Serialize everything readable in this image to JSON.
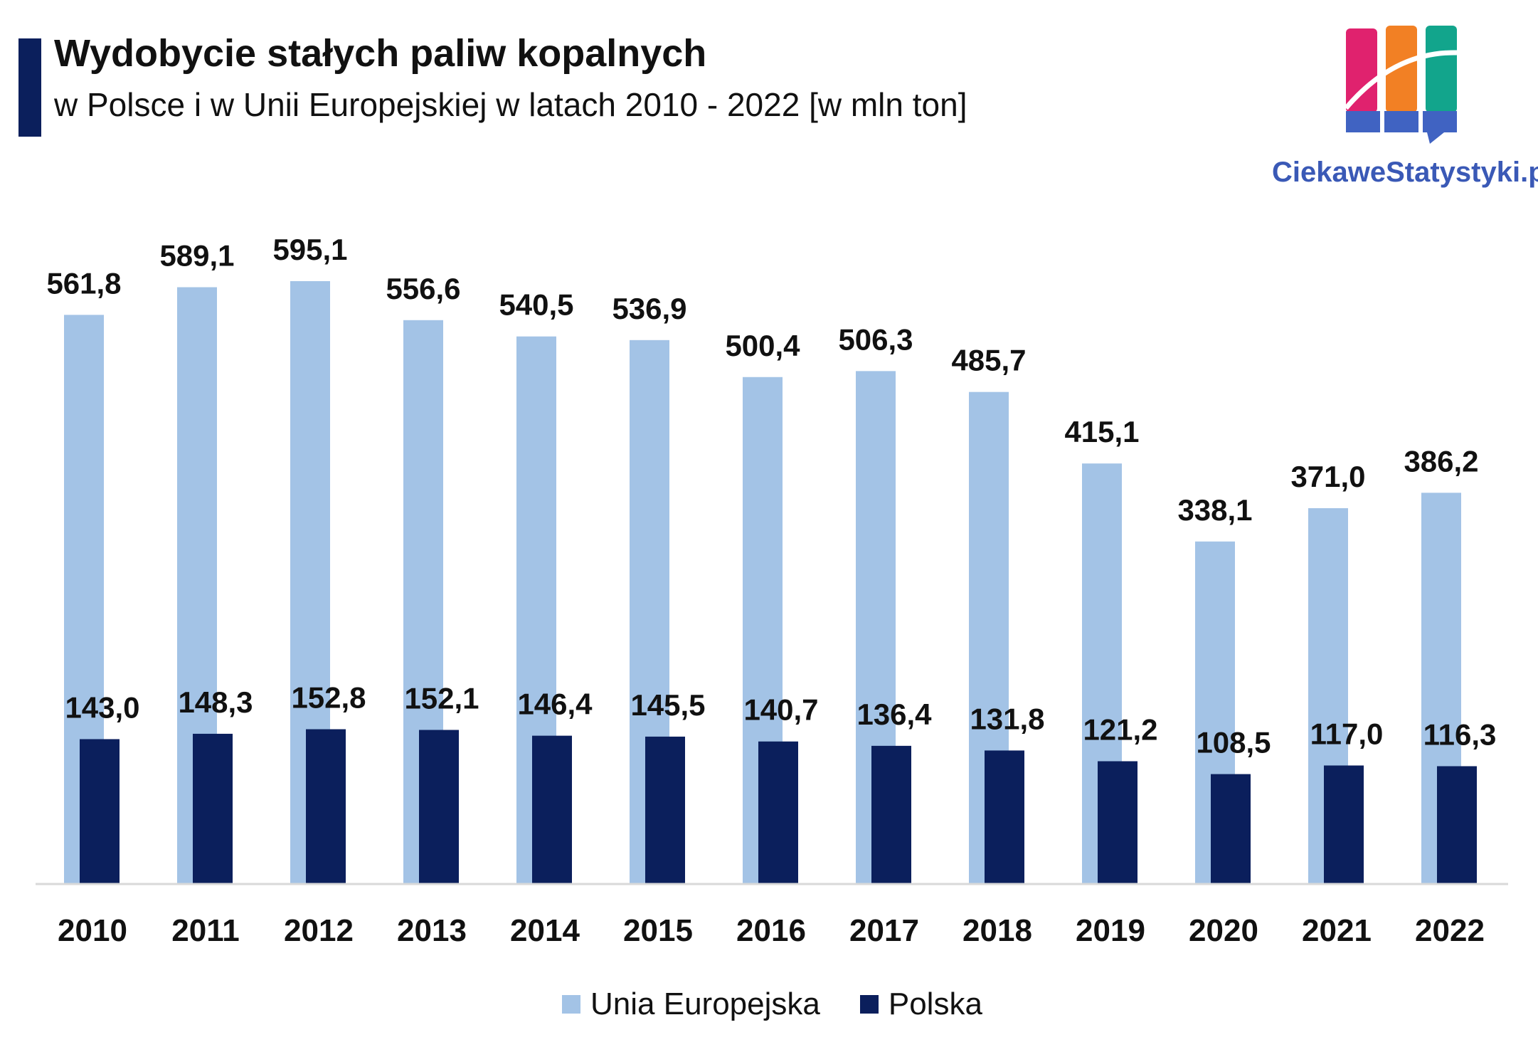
{
  "header": {
    "title": "Wydobycie stałych paliw kopalnych",
    "subtitle": "w Polsce i w Unii Europejskiej w latach 2010 - 2022 [w mln ton]"
  },
  "logo": {
    "text": "CiekaweStatystyki.pl",
    "colors": [
      "#e0226e",
      "#f28024",
      "#12a58c",
      "#4063c2"
    ]
  },
  "colors": {
    "eu": "#a3c3e6",
    "pl": "#0b1f5c",
    "axis": "#d9d9d9",
    "title_bar": "#0b1f5c"
  },
  "chart_data": {
    "type": "bar",
    "title": "Wydobycie stałych paliw kopalnych",
    "categories": [
      "2010",
      "2011",
      "2012",
      "2013",
      "2014",
      "2015",
      "2016",
      "2017",
      "2018",
      "2019",
      "2020",
      "2021",
      "2022"
    ],
    "series": [
      {
        "name": "Unia Europejska",
        "values": [
          561.8,
          589.1,
          595.1,
          556.6,
          540.5,
          536.9,
          500.4,
          506.3,
          485.7,
          415.1,
          338.1,
          371.0,
          386.2
        ],
        "labels": [
          "561,8",
          "589,1",
          "595,1",
          "556,6",
          "540,5",
          "536,9",
          "500,4",
          "506,3",
          "485,7",
          "415,1",
          "338,1",
          "371,0",
          "386,2"
        ]
      },
      {
        "name": "Polska",
        "values": [
          143.0,
          148.3,
          152.8,
          152.1,
          146.4,
          145.5,
          140.7,
          136.4,
          131.8,
          121.2,
          108.5,
          117.0,
          116.3
        ],
        "labels": [
          "143,0",
          "148,3",
          "152,8",
          "152,1",
          "146,4",
          "145,5",
          "140,7",
          "136,4",
          "131,8",
          "121,2",
          "108,5",
          "117,0",
          "116,3"
        ]
      }
    ],
    "ylim": [
      0,
      600
    ],
    "legend_position": "bottom",
    "grid": false
  }
}
